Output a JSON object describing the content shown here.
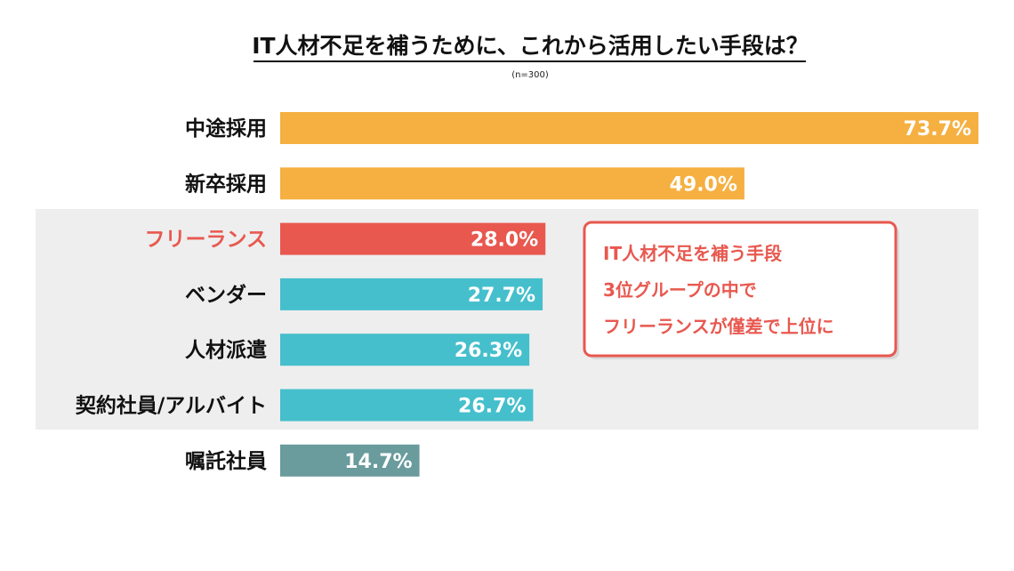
{
  "chart_data": {
    "type": "bar",
    "orientation": "horizontal",
    "title": "IT人材不足を補うために、これから活用したい手段は？",
    "subtitle": "(n=300)",
    "categories": [
      "中途採用",
      "新卒採用",
      "フリーランス",
      "ベンダー",
      "人材派遣",
      "契約社員/アルバイト",
      "嘱託社員"
    ],
    "values": [
      73.7,
      49.0,
      28.0,
      27.7,
      26.3,
      26.7,
      14.7
    ],
    "value_labels": [
      "73.7%",
      "49.0%",
      "28.0%",
      "27.7%",
      "26.3%",
      "26.7%",
      "14.7%"
    ],
    "bar_colors": [
      "#F5B041",
      "#F5B041",
      "#E8584F",
      "#45BFCC",
      "#45BFCC",
      "#45BFCC",
      "#6A9B9D"
    ],
    "label_colors": [
      "#111111",
      "#111111",
      "#E8584F",
      "#111111",
      "#111111",
      "#111111",
      "#111111"
    ],
    "highlighted_group": [
      "フリーランス",
      "ベンダー",
      "人材派遣",
      "契約社員/アルバイト"
    ],
    "unit": "%",
    "grid": false,
    "legend": "none",
    "annotation": {
      "lines": [
        "IT人材不足を補う手段",
        "3位グループの中で",
        "フリーランスが僅差で上位に"
      ],
      "color": "#E8584F"
    }
  },
  "colors": {
    "highlight_band": "#EEEEEE",
    "callout_border": "#E8584F",
    "callout_text": "#E8584F",
    "value_text": "#FFFFFF"
  }
}
